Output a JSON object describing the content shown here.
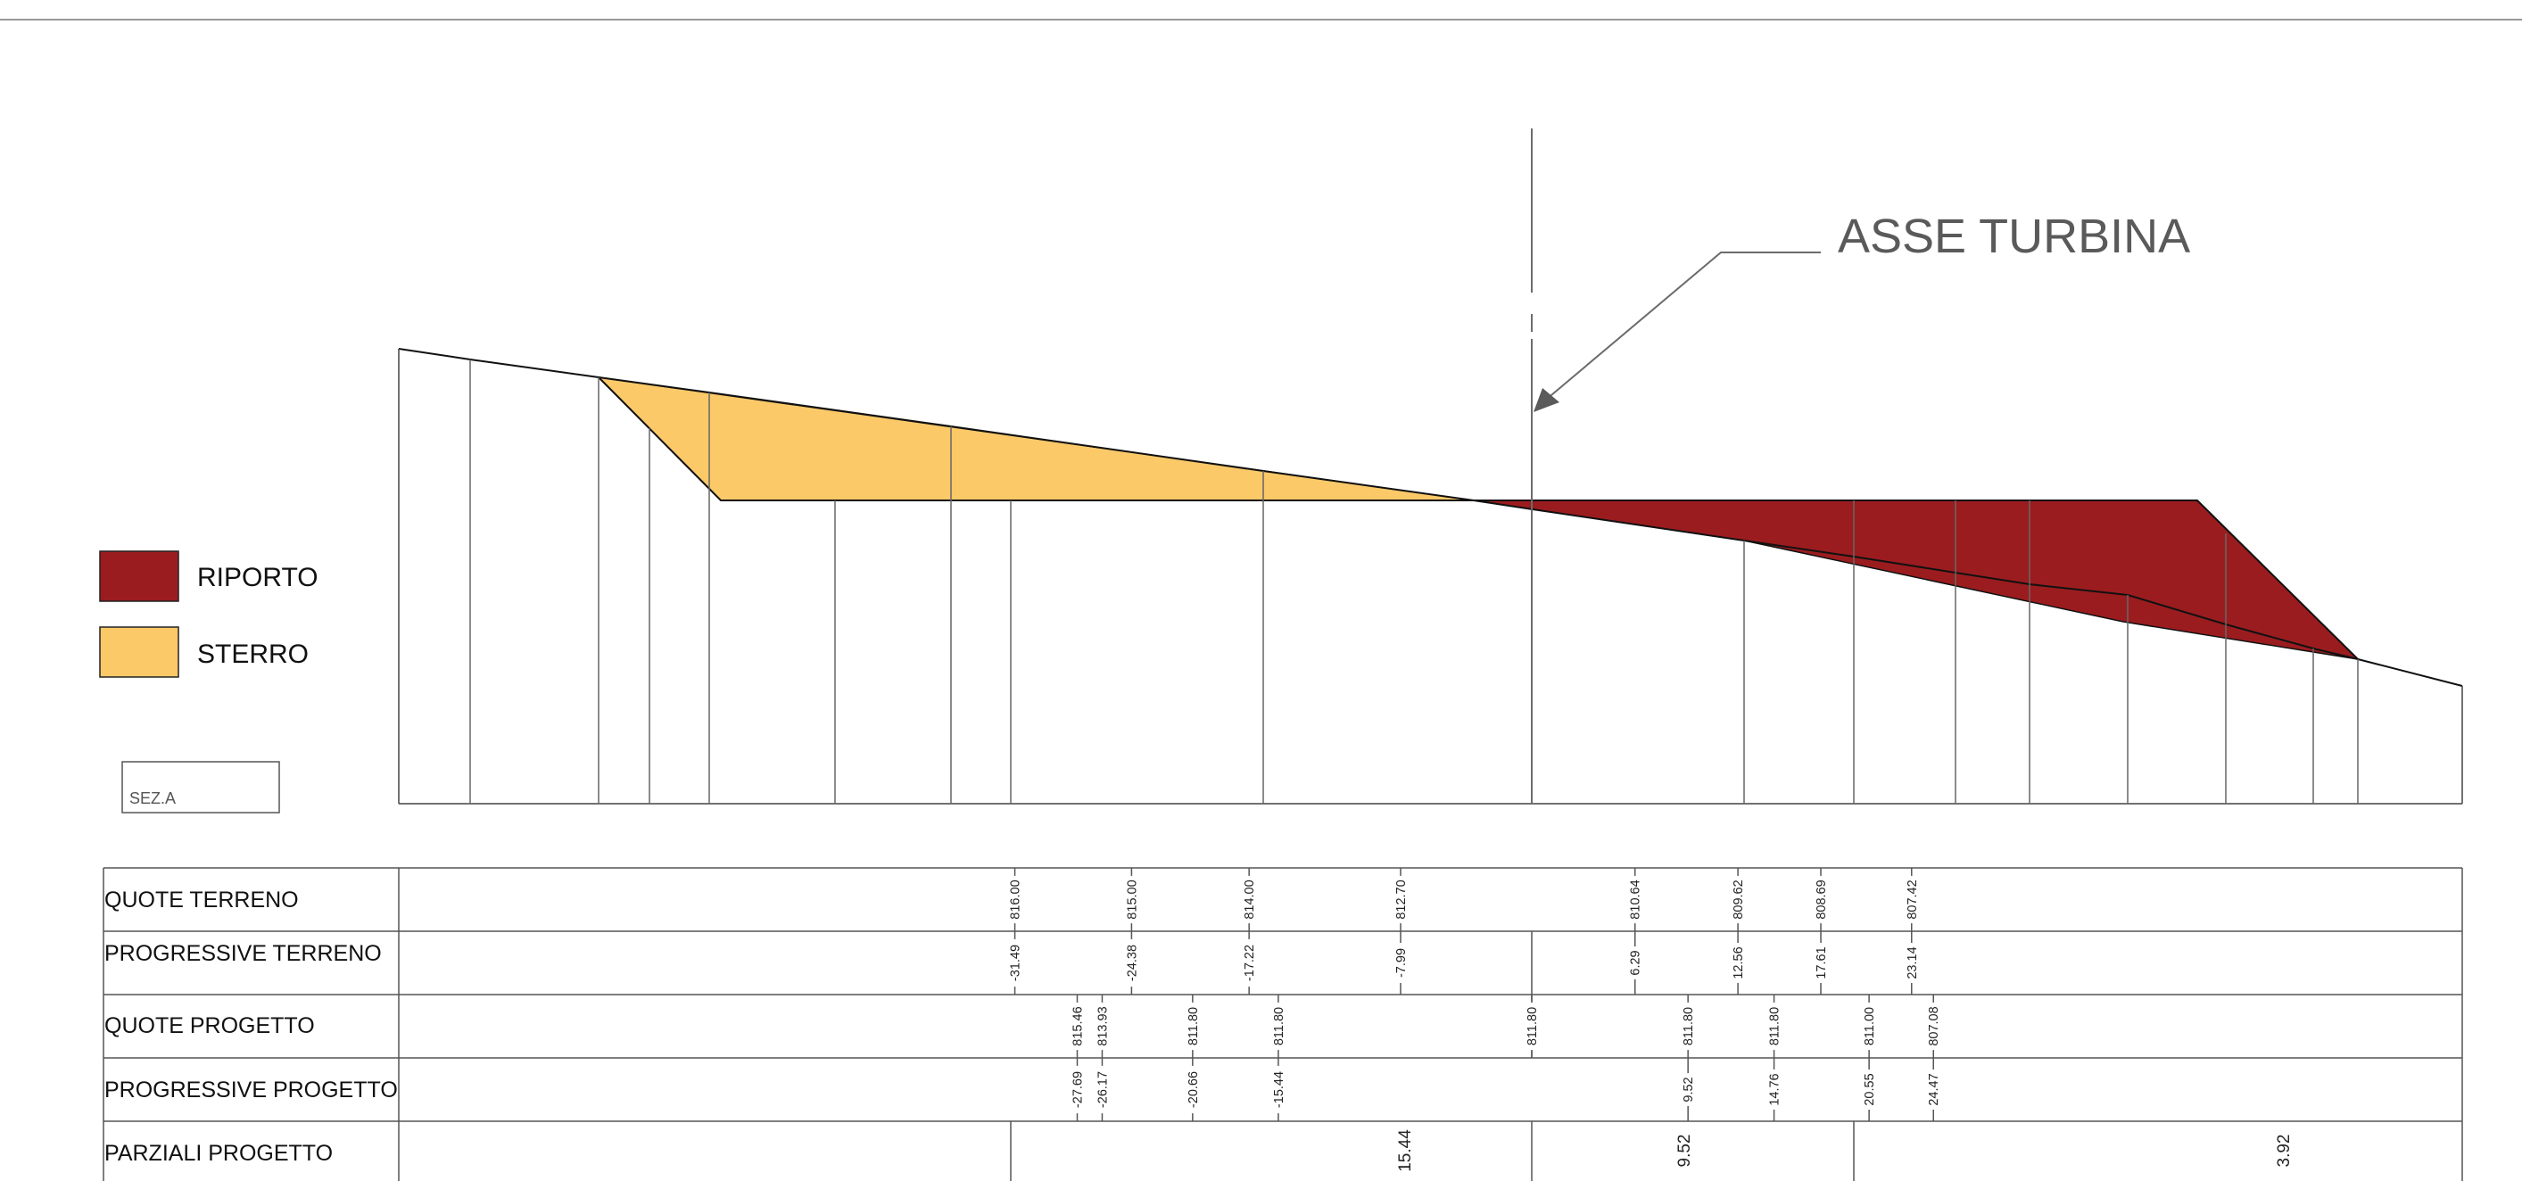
{
  "colors": {
    "riporto": "#9b1c1f",
    "sterro": "#fcc969",
    "line": "#111111",
    "axis": "#6b6b6b"
  },
  "legend": {
    "riporto": "RIPORTO",
    "sterro": "STERRO"
  },
  "axis_label": "ASSE TURBINA",
  "section_label": "SEZ.A",
  "table": {
    "rows": {
      "quote_terreno": "QUOTE TERRENO",
      "progressive_terreno": "PROGRESSIVE TERRENO",
      "quote_progetto": "QUOTE PROGETTO",
      "progressive_progetto": "PROGRESSIVE PROGETTO",
      "parziali_progetto": "PARZIALI PROGETTO"
    }
  },
  "chart_data": {
    "type": "profile",
    "terrain": [
      {
        "progressive": -31.49,
        "quota": "816.00",
        "progressive_label": "-31.49"
      },
      {
        "progressive": -24.38,
        "quota": "815.00",
        "progressive_label": "-24.38"
      },
      {
        "progressive": -17.22,
        "quota": "814.00",
        "progressive_label": "-17.22"
      },
      {
        "progressive": -7.99,
        "quota": "812.70",
        "progressive_label": "-7.99"
      },
      {
        "progressive": 6.29,
        "quota": "810.64",
        "progressive_label": "6.29"
      },
      {
        "progressive": 12.56,
        "quota": "809.62",
        "progressive_label": "12.56"
      },
      {
        "progressive": 17.61,
        "quota": "808.69",
        "progressive_label": "17.61"
      },
      {
        "progressive": 23.14,
        "quota": "807.42",
        "progressive_label": "23.14"
      }
    ],
    "design": [
      {
        "progressive": -27.69,
        "quota": "815.46",
        "progressive_label": "-27.69"
      },
      {
        "progressive": -26.17,
        "quota": "813.93",
        "progressive_label": "-26.17"
      },
      {
        "progressive": -20.66,
        "quota": "811.80",
        "progressive_label": "-20.66"
      },
      {
        "progressive": -15.44,
        "quota": "811.80",
        "progressive_label": "-15.44"
      },
      {
        "progressive": 0,
        "quota": "811.80",
        "progressive_label": ""
      },
      {
        "progressive": 9.52,
        "quota": "811.80",
        "progressive_label": "9.52"
      },
      {
        "progressive": 14.76,
        "quota": "811.80",
        "progressive_label": "14.76"
      },
      {
        "progressive": 20.55,
        "quota": "811.00",
        "progressive_label": "20.55"
      },
      {
        "progressive": 24.47,
        "quota": "807.08",
        "progressive_label": "24.47"
      }
    ],
    "partials": [
      {
        "from": -15.44,
        "to": 0,
        "value": "15.44"
      },
      {
        "from": 0,
        "to": 9.52,
        "value": "9.52"
      },
      {
        "from": 9.52,
        "to": 30.0,
        "value": "3.92"
      }
    ],
    "x_range": [
      -33.6,
      27.5
    ]
  }
}
